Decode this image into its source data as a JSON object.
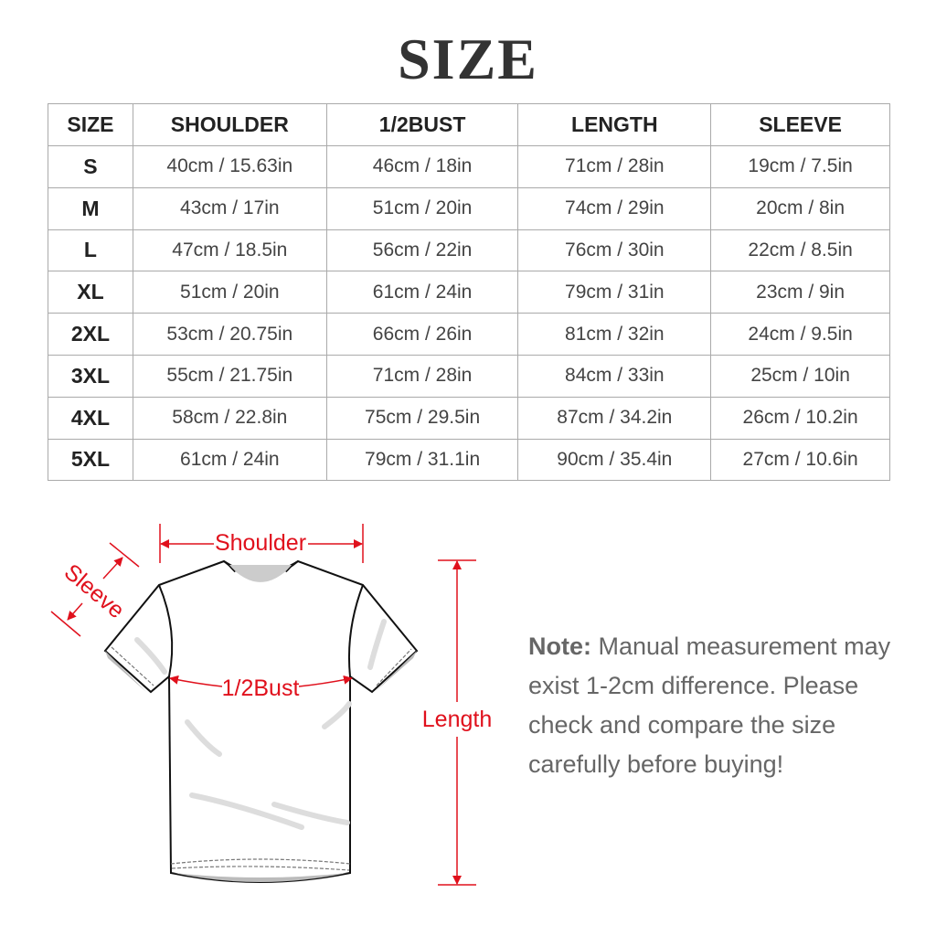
{
  "title": "SIZE",
  "table": {
    "headers": [
      "SIZE",
      "SHOULDER",
      "1/2BUST",
      "LENGTH",
      "SLEEVE"
    ],
    "rows": [
      [
        "S",
        "40cm / 15.63in",
        "46cm / 18in",
        "71cm / 28in",
        "19cm / 7.5in"
      ],
      [
        "M",
        "43cm / 17in",
        "51cm / 20in",
        "74cm / 29in",
        "20cm / 8in"
      ],
      [
        "L",
        "47cm / 18.5in",
        "56cm / 22in",
        "76cm / 30in",
        "22cm / 8.5in"
      ],
      [
        "XL",
        "51cm / 20in",
        "61cm / 24in",
        "79cm / 31in",
        "23cm / 9in"
      ],
      [
        "2XL",
        "53cm / 20.75in",
        "66cm / 26in",
        "81cm / 32in",
        "24cm / 9.5in"
      ],
      [
        "3XL",
        "55cm / 21.75in",
        "71cm / 28in",
        "84cm / 33in",
        "25cm / 10in"
      ],
      [
        "4XL",
        "58cm / 22.8in",
        "75cm / 29.5in",
        "87cm / 34.2in",
        "26cm / 10.2in"
      ],
      [
        "5XL",
        "61cm / 24in",
        "79cm / 31.1in",
        "90cm / 35.4in",
        "27cm / 10.6in"
      ]
    ]
  },
  "diagram": {
    "shoulder_label": "Shoulder",
    "sleeve_label": "Sleeve",
    "bust_label": "1/2Bust",
    "length_label": "Length",
    "accent_color": "#e0101c"
  },
  "note": {
    "label": "Note:",
    "text": "Manual measurement may exist 1-2cm difference. Please check and compare the size carefully before buying!"
  }
}
